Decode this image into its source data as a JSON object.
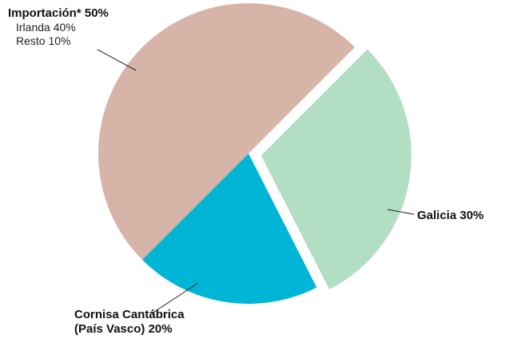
{
  "chart_data": {
    "type": "pie",
    "categories": [
      "Galicia",
      "Cornisa Cantábrica (País Vasco)",
      "Importación*"
    ],
    "values": [
      30,
      20,
      50
    ],
    "value_labels": [
      "30%",
      "20%",
      "50%"
    ],
    "colors": [
      "#b2dec4",
      "#00b5d6",
      "#d6b4a8"
    ],
    "start_angle": 45,
    "explode": [
      1,
      0,
      0
    ],
    "annotations": [
      "Irlanda 40%",
      "Resto 10%"
    ]
  }
}
